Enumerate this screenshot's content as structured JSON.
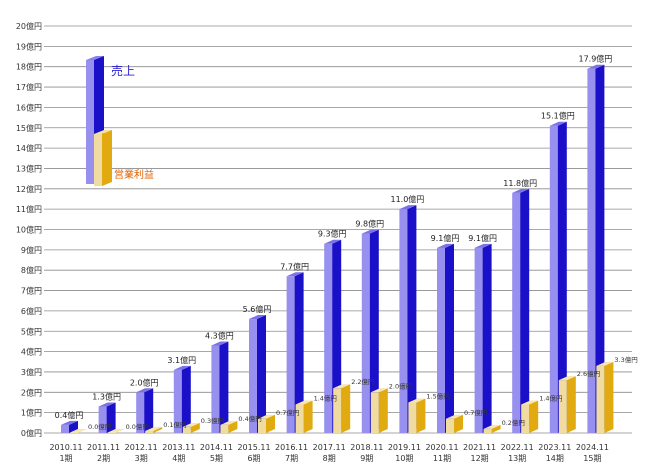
{
  "chart_data": {
    "type": "bar",
    "title": "",
    "xlabel": "",
    "ylabel": "",
    "ylim": [
      0,
      20
    ],
    "y_unit_suffix": "億円",
    "y_ticks": [
      "0億円",
      "1億円",
      "2億円",
      "3億円",
      "4億円",
      "5億円",
      "6億円",
      "7億円",
      "8億円",
      "9億円",
      "10億円",
      "11億円",
      "12億円",
      "13億円",
      "14億円",
      "15億円",
      "16億円",
      "17億円",
      "18億円",
      "19億円",
      "20億円"
    ],
    "grid": true,
    "legend_position": "top-left",
    "categories": [
      {
        "date": "2010.11",
        "period": "1期"
      },
      {
        "date": "2011.11",
        "period": "2期"
      },
      {
        "date": "2012.11",
        "period": "3期"
      },
      {
        "date": "2013.11",
        "period": "4期"
      },
      {
        "date": "2014.11",
        "period": "5期"
      },
      {
        "date": "2015.11",
        "period": "6期"
      },
      {
        "date": "2016.11",
        "period": "7期"
      },
      {
        "date": "2017.11",
        "period": "8期"
      },
      {
        "date": "2018.11",
        "period": "9期"
      },
      {
        "date": "2019.11",
        "period": "10期"
      },
      {
        "date": "2020.11",
        "period": "11期"
      },
      {
        "date": "2021.11",
        "period": "12期"
      },
      {
        "date": "2022.11",
        "period": "13期"
      },
      {
        "date": "2023.11",
        "period": "14期"
      },
      {
        "date": "2024.11",
        "period": "15期"
      }
    ],
    "series": [
      {
        "name": "売上",
        "color": "#1a10c8",
        "values": [
          0.4,
          1.3,
          2.0,
          3.1,
          4.3,
          5.6,
          7.7,
          9.3,
          9.8,
          11.0,
          9.1,
          9.1,
          11.8,
          15.1,
          17.9
        ],
        "labels": [
          "0.4億円",
          "1.3億円",
          "2.0億円",
          "3.1億円",
          "4.3億円",
          "5.6億円",
          "7.7億円",
          "9.3億円",
          "9.8億円",
          "11.0億円",
          "9.1億円",
          "9.1億円",
          "11.8億円",
          "15.1億円",
          "17.9億円"
        ]
      },
      {
        "name": "営業利益",
        "color": "#e0aa10",
        "values": [
          0.0,
          0.0,
          0.1,
          0.3,
          0.4,
          0.7,
          1.4,
          2.2,
          2.0,
          1.5,
          0.7,
          0.2,
          1.4,
          2.6,
          3.3
        ],
        "labels": [
          "0.0億円",
          "0.0億円",
          "0.1億円",
          "0.3億円",
          "0.4億円",
          "0.7億円",
          "1.4億円",
          "2.2億円",
          "2.0億円",
          "1.5億円",
          "0.7億円",
          "0.2億円",
          "1.4億円",
          "2.6億円",
          "3.3億円"
        ]
      }
    ]
  },
  "legend": {
    "sales": {
      "label": "売上",
      "color": "#2a1fd0"
    },
    "profit": {
      "label": "営業利益",
      "color": "#e06000"
    }
  }
}
